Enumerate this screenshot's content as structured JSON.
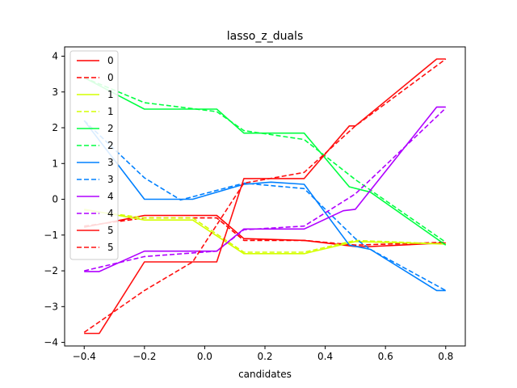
{
  "chart_data": {
    "type": "line",
    "title": "lasso_z_duals",
    "xlabel": "candidates",
    "ylabel": "",
    "xlim": [
      -0.465,
      0.865
    ],
    "ylim": [
      -4.1,
      4.26
    ],
    "xticks": [
      -0.4,
      -0.2,
      0.0,
      0.2,
      0.4,
      0.6,
      0.8
    ],
    "xtick_labels": [
      "−0.4",
      "−0.2",
      "0.0",
      "0.2",
      "0.4",
      "0.6",
      "0.8"
    ],
    "yticks": [
      -4,
      -3,
      -2,
      -1,
      0,
      1,
      2,
      3,
      4
    ],
    "ytick_labels": [
      "−4",
      "−3",
      "−2",
      "−1",
      "0",
      "1",
      "2",
      "3",
      "4"
    ],
    "grid": false,
    "legend_position": "upper-left",
    "series": [
      {
        "name": "0",
        "color": "#ff0000",
        "dash": false,
        "x": [
          -0.4,
          -0.2,
          0.04,
          0.13,
          0.33,
          0.5,
          0.55,
          0.8
        ],
        "y": [
          -0.78,
          -0.45,
          -0.45,
          -1.1,
          -1.15,
          -1.32,
          -1.32,
          -1.22
        ]
      },
      {
        "name": "0",
        "color": "#ff0000",
        "dash": true,
        "x": [
          -0.4,
          -0.2,
          0.04,
          0.13,
          0.33,
          0.5,
          0.8
        ],
        "y": [
          -0.75,
          -0.52,
          -0.52,
          -1.15,
          -1.15,
          -1.28,
          -1.2
        ]
      },
      {
        "name": "1",
        "color": "#d4ff00",
        "dash": false,
        "x": [
          -0.4,
          -0.2,
          -0.04,
          0.13,
          0.33,
          0.5,
          0.8
        ],
        "y": [
          -0.28,
          -0.58,
          -0.58,
          -1.52,
          -1.52,
          -1.18,
          -1.25
        ]
      },
      {
        "name": "1",
        "color": "#d4ff00",
        "dash": true,
        "x": [
          -0.4,
          -0.2,
          -0.04,
          0.13,
          0.33,
          0.5,
          0.8
        ],
        "y": [
          -0.3,
          -0.52,
          -0.52,
          -1.48,
          -1.48,
          -1.15,
          -1.25
        ]
      },
      {
        "name": "2",
        "color": "#00ff40",
        "dash": false,
        "x": [
          -0.4,
          -0.2,
          0.04,
          0.13,
          0.33,
          0.48,
          0.55,
          0.8
        ],
        "y": [
          3.4,
          2.52,
          2.52,
          1.85,
          1.85,
          0.35,
          0.2,
          -1.28
        ]
      },
      {
        "name": "2",
        "color": "#00ff40",
        "dash": true,
        "x": [
          -0.4,
          -0.2,
          0.04,
          0.13,
          0.33,
          0.5,
          0.8
        ],
        "y": [
          3.4,
          2.7,
          2.45,
          1.92,
          1.67,
          0.55,
          -1.2
        ]
      },
      {
        "name": "3",
        "color": "#0080ff",
        "dash": false,
        "x": [
          -0.4,
          -0.2,
          -0.04,
          0.13,
          0.22,
          0.33,
          0.48,
          0.55,
          0.77,
          0.8
        ],
        "y": [
          2.2,
          0.0,
          0.0,
          0.42,
          0.48,
          0.42,
          -1.28,
          -1.4,
          -2.55,
          -2.55
        ]
      },
      {
        "name": "3",
        "color": "#0080ff",
        "dash": true,
        "x": [
          -0.4,
          -0.2,
          -0.08,
          0.13,
          0.33,
          0.5,
          0.55,
          0.8
        ],
        "y": [
          2.2,
          0.6,
          -0.02,
          0.45,
          0.3,
          -1.1,
          -1.4,
          -2.55
        ]
      },
      {
        "name": "4",
        "color": "#b000ff",
        "dash": false,
        "x": [
          -0.4,
          -0.35,
          -0.2,
          0.04,
          0.13,
          0.33,
          0.46,
          0.5,
          0.77,
          0.8
        ],
        "y": [
          -2.02,
          -2.02,
          -1.45,
          -1.45,
          -0.83,
          -0.83,
          -0.32,
          -0.28,
          2.58,
          2.58
        ]
      },
      {
        "name": "4",
        "color": "#b000ff",
        "dash": true,
        "x": [
          -0.4,
          -0.2,
          0.04,
          0.13,
          0.33,
          0.5,
          0.8
        ],
        "y": [
          -2.0,
          -1.6,
          -1.45,
          -0.85,
          -0.75,
          0.15,
          2.55
        ]
      },
      {
        "name": "5",
        "color": "#ff1010",
        "dash": false,
        "x": [
          -0.4,
          -0.35,
          -0.2,
          0.04,
          0.13,
          0.33,
          0.48,
          0.5,
          0.77,
          0.8
        ],
        "y": [
          -3.75,
          -3.75,
          -1.75,
          -1.75,
          0.58,
          0.58,
          2.05,
          2.05,
          3.92,
          3.92
        ]
      },
      {
        "name": "5",
        "color": "#ff1010",
        "dash": true,
        "x": [
          -0.4,
          -0.2,
          -0.04,
          0.13,
          0.33,
          0.5,
          0.8
        ],
        "y": [
          -3.72,
          -2.55,
          -1.75,
          0.45,
          0.75,
          2.05,
          3.92
        ]
      }
    ]
  }
}
